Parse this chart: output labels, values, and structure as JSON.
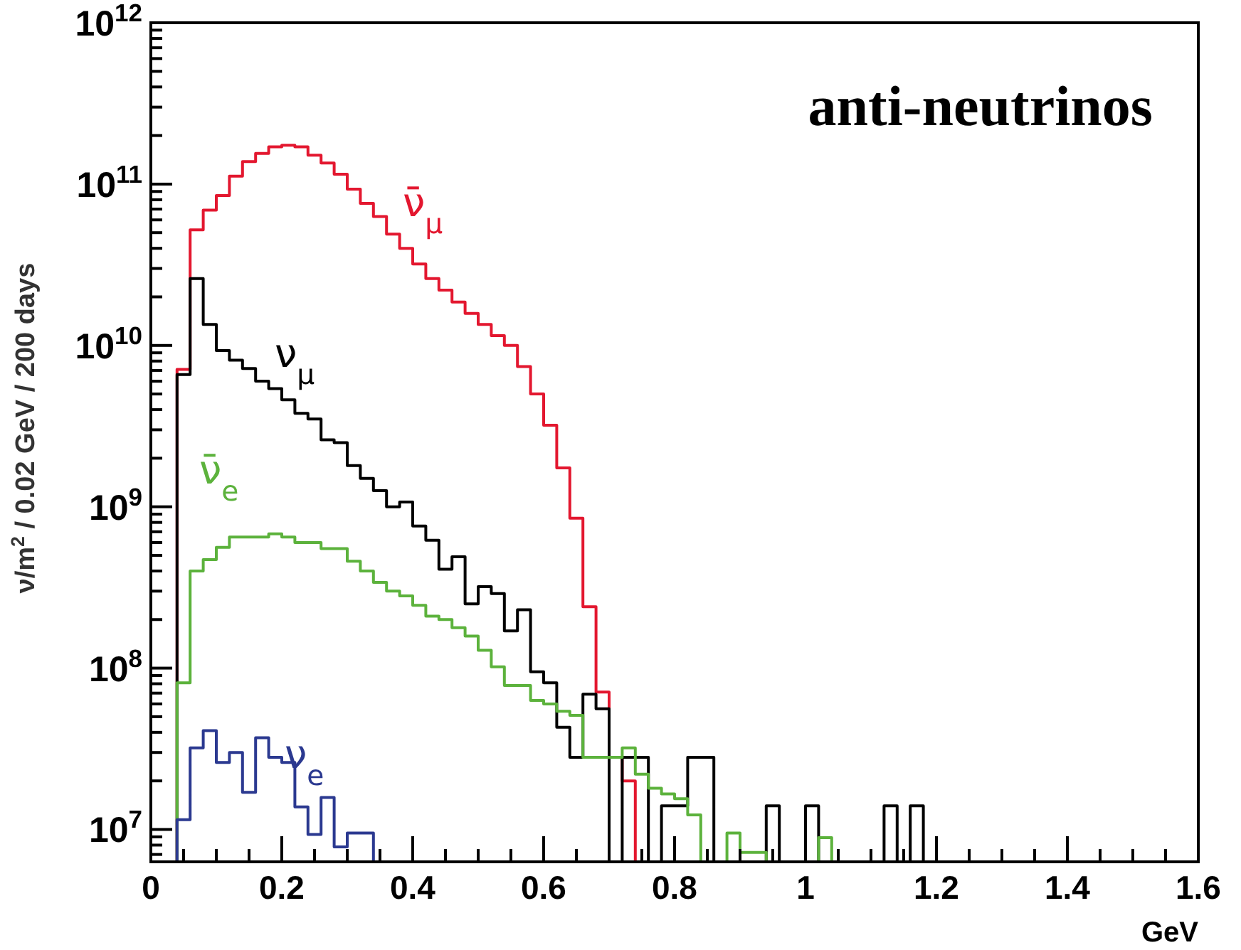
{
  "chart_data": {
    "type": "histogram",
    "title": "anti-neutrinos",
    "xlabel": "GeV",
    "ylabel": "ν/m$^{2}$ / 0.02 GeV / 200 days",
    "log": "y",
    "grid": false,
    "legend": false,
    "bins": [
      0,
      0.02,
      0.04,
      0.06,
      0.08,
      0.1,
      0.12,
      0.14,
      0.16,
      0.18,
      0.2,
      0.22,
      0.24,
      0.26,
      0.28,
      0.3,
      0.32,
      0.34,
      0.36,
      0.38,
      0.4,
      0.42,
      0.44,
      0.46,
      0.48,
      0.5,
      0.52,
      0.54,
      0.56,
      0.58,
      0.6,
      0.62,
      0.64,
      0.66,
      0.68,
      0.7,
      0.72,
      0.74,
      0.76,
      0.78,
      0.8,
      0.82,
      0.84,
      0.86,
      0.88,
      0.9,
      0.92,
      0.94,
      0.96,
      0.98,
      1,
      1.02,
      1.04,
      1.06,
      1.08,
      1.1,
      1.12,
      1.14,
      1.16,
      1.18,
      1.2,
      1.22,
      1.24,
      1.26,
      1.28,
      1.3,
      1.32,
      1.34,
      1.36,
      1.38,
      1.4,
      1.42,
      1.44,
      1.46,
      1.48,
      1.5,
      1.52,
      1.54,
      1.56,
      1.58,
      1.6
    ],
    "xlim": [
      0,
      1.6
    ],
    "ylim": [
      6300000.0,
      1000000000000.0
    ],
    "xticks": [
      0,
      {
        "value": 0.05,
        "label": null
      },
      {
        "value": 0.1,
        "label": null
      },
      {
        "value": 0.15,
        "label": null
      },
      0.2,
      {
        "value": 0.25,
        "label": null
      },
      {
        "value": 0.3,
        "label": null
      },
      {
        "value": 0.35,
        "label": null
      },
      0.4,
      {
        "value": 0.45,
        "label": null
      },
      {
        "value": 0.5,
        "label": null
      },
      {
        "value": 0.55,
        "label": null
      },
      0.6,
      {
        "value": 0.65,
        "label": null
      },
      {
        "value": 0.7,
        "label": null
      },
      {
        "value": 0.75,
        "label": null
      },
      0.8,
      {
        "value": 0.85,
        "label": null
      },
      {
        "value": 0.9,
        "label": null
      },
      {
        "value": 0.95,
        "label": null
      },
      1,
      {
        "value": 1.05,
        "label": null
      },
      {
        "value": 1.1,
        "label": null
      },
      {
        "value": 1.15,
        "label": null
      },
      1.2,
      {
        "value": 1.25,
        "label": null
      },
      {
        "value": 1.3,
        "label": null
      },
      {
        "value": 1.35,
        "label": null
      },
      1.4,
      {
        "value": 1.45,
        "label": null
      },
      {
        "value": 1.5,
        "label": null
      },
      {
        "value": 1.55,
        "label": null
      },
      1.6
    ],
    "yticks": [
      {
        "value": 7000000.0,
        "label": null
      },
      {
        "value": 8000000.0,
        "label": null
      },
      {
        "value": 9000000.0,
        "label": null
      },
      {
        "value": 10000000.0,
        "label": "10$^{7}$"
      },
      {
        "value": 20000000.0,
        "label": null
      },
      {
        "value": 30000000.0,
        "label": null
      },
      {
        "value": 40000000.0,
        "label": null
      },
      {
        "value": 50000000.0,
        "label": null
      },
      {
        "value": 60000000.0,
        "label": null
      },
      {
        "value": 70000000.0,
        "label": null
      },
      {
        "value": 80000000.0,
        "label": null
      },
      {
        "value": 90000000.0,
        "label": null
      },
      {
        "value": 100000000.0,
        "label": "10$^{8}$"
      },
      {
        "value": 200000000.0,
        "label": null
      },
      {
        "value": 300000000.0,
        "label": null
      },
      {
        "value": 400000000.0,
        "label": null
      },
      {
        "value": 500000000.0,
        "label": null
      },
      {
        "value": 600000000.0,
        "label": null
      },
      {
        "value": 700000000.0,
        "label": null
      },
      {
        "value": 800000000.0,
        "label": null
      },
      {
        "value": 900000000.0,
        "label": null
      },
      {
        "value": 1000000000.0,
        "label": "10$^{9}$"
      },
      {
        "value": 2000000000.0,
        "label": null
      },
      {
        "value": 3000000000.0,
        "label": null
      },
      {
        "value": 4000000000.0,
        "label": null
      },
      {
        "value": 5000000000.0,
        "label": null
      },
      {
        "value": 6000000000.0,
        "label": null
      },
      {
        "value": 7000000000.0,
        "label": null
      },
      {
        "value": 8000000000.0,
        "label": null
      },
      {
        "value": 9000000000.0,
        "label": null
      },
      {
        "value": 10000000000.0,
        "label": "10$^{10}$"
      },
      {
        "value": 20000000000.0,
        "label": null
      },
      {
        "value": 30000000000.0,
        "label": null
      },
      {
        "value": 40000000000.0,
        "label": null
      },
      {
        "value": 50000000000.0,
        "label": null
      },
      {
        "value": 60000000000.0,
        "label": null
      },
      {
        "value": 70000000000.0,
        "label": null
      },
      {
        "value": 80000000000.0,
        "label": null
      },
      {
        "value": 90000000000.0,
        "label": null
      },
      {
        "value": 100000000000.0,
        "label": "10$^{11}$"
      },
      {
        "value": 200000000000.0,
        "label": null
      },
      {
        "value": 300000000000.0,
        "label": null
      },
      {
        "value": 400000000000.0,
        "label": null
      },
      {
        "value": 500000000000.0,
        "label": null
      },
      {
        "value": 600000000000.0,
        "label": null
      },
      {
        "value": 700000000000.0,
        "label": null
      },
      {
        "value": 800000000000.0,
        "label": null
      },
      {
        "value": 900000000000.0,
        "label": null
      },
      {
        "value": 1000000000000.0,
        "label": "10$^{12}$"
      }
    ],
    "series": [
      {
        "name": "ν̄$_{μ}$",
        "color": "#e3172f",
        "values": [
          null,
          null,
          7100000000.0,
          52000000000.0,
          69000000000.0,
          85000000000.0,
          112000000000.0,
          138000000000.0,
          155000000000.0,
          170000000000.0,
          174000000000.0,
          170000000000.0,
          151000000000.0,
          135000000000.0,
          115000000000.0,
          93000000000.0,
          76000000000.0,
          63000000000.0,
          49000000000.0,
          40000000000.0,
          32000000000.0,
          26000000000.0,
          22000000000.0,
          18600000000.0,
          15800000000.0,
          13500000000.0,
          11500000000.0,
          10000000000.0,
          7400000000.0,
          5000000000.0,
          3200000000.0,
          1740000000.0,
          850000000.0,
          240000000.0,
          71000000.0,
          28000000.0,
          20000000.0,
          null,
          null,
          null,
          null,
          null,
          null,
          null,
          null,
          null,
          null,
          null,
          null,
          null,
          null,
          null,
          null,
          null,
          null,
          null,
          null,
          null,
          null,
          null,
          null,
          null,
          null,
          null,
          null,
          null,
          null,
          null,
          null,
          null,
          null,
          null,
          null,
          null,
          null,
          null,
          null,
          null,
          null,
          null
        ]
      },
      {
        "name": "ν$_{μ}$",
        "color": "#000000",
        "values": [
          null,
          null,
          6600000000.0,
          26000000000.0,
          13500000000.0,
          9300000000.0,
          8100000000.0,
          7200000000.0,
          6000000000.0,
          5400000000.0,
          4600000000.0,
          3800000000.0,
          3500000000.0,
          2600000000.0,
          2500000000.0,
          1800000000.0,
          1500000000.0,
          1260000000.0,
          1000000000.0,
          1070000000.0,
          760000000.0,
          620000000.0,
          410000000.0,
          490000000.0,
          250000000.0,
          320000000.0,
          290000000.0,
          170000000.0,
          230000000.0,
          95000000.0,
          81000000.0,
          43000000.0,
          28000000.0,
          69000000.0,
          56000000.0,
          null,
          28000000.0,
          28000000.0,
          null,
          14000000.0,
          14000000.0,
          28000000.0,
          28000000.0,
          null,
          null,
          null,
          null,
          14000000.0,
          null,
          null,
          14000000.0,
          null,
          null,
          null,
          null,
          null,
          14000000.0,
          null,
          14000000.0,
          null,
          null,
          null,
          null,
          null,
          null,
          null,
          null,
          null,
          null,
          null,
          null,
          null,
          null,
          null,
          null,
          null,
          null,
          null,
          null,
          null
        ]
      },
      {
        "name": "ν̄$_{e}$",
        "color": "#5cb23c",
        "values": [
          null,
          null,
          81000000.0,
          400000000.0,
          470000000.0,
          560000000.0,
          650000000.0,
          650000000.0,
          650000000.0,
          680000000.0,
          650000000.0,
          600000000.0,
          600000000.0,
          550000000.0,
          550000000.0,
          460000000.0,
          400000000.0,
          340000000.0,
          300000000.0,
          280000000.0,
          245000000.0,
          210000000.0,
          200000000.0,
          178000000.0,
          158000000.0,
          129000000.0,
          102000000.0,
          78000000.0,
          78000000.0,
          63000000.0,
          60000000.0,
          54000000.0,
          51000000.0,
          28000000.0,
          28000000.0,
          28000000.0,
          32000000.0,
          22000000.0,
          18000000.0,
          16600000.0,
          15500000.0,
          12300000.0,
          null,
          null,
          9500000.0,
          7200000.0,
          7200000.0,
          null,
          null,
          null,
          null,
          8900000.0,
          null,
          null,
          null,
          null,
          null,
          null,
          null,
          null,
          null,
          null,
          null,
          null,
          null,
          null,
          null,
          null,
          null,
          null,
          null,
          null,
          null,
          null,
          null,
          null,
          null,
          null,
          null,
          null
        ]
      },
      {
        "name": "ν$_{e}$",
        "color": "#2b3990",
        "values": [
          null,
          null,
          11500000.0,
          32000000.0,
          41000000.0,
          26000000.0,
          30000000.0,
          17000000.0,
          37000000.0,
          28000000.0,
          26000000.0,
          13800000.0,
          9300000.0,
          15800000.0,
          7800000.0,
          9500000.0,
          9500000.0,
          null,
          null,
          null,
          null,
          null,
          null,
          null,
          null,
          null,
          null,
          null,
          null,
          null,
          null,
          null,
          null,
          null,
          null,
          null,
          null,
          null,
          null,
          null,
          null,
          null,
          null,
          null,
          null,
          null,
          null,
          null,
          null,
          null,
          null,
          null,
          null,
          null,
          null,
          null,
          null,
          null,
          null,
          null,
          null,
          null,
          null,
          null,
          null,
          null,
          null,
          null,
          null,
          null,
          null,
          null,
          null,
          null,
          null,
          null,
          null,
          null,
          null,
          null
        ]
      }
    ]
  }
}
